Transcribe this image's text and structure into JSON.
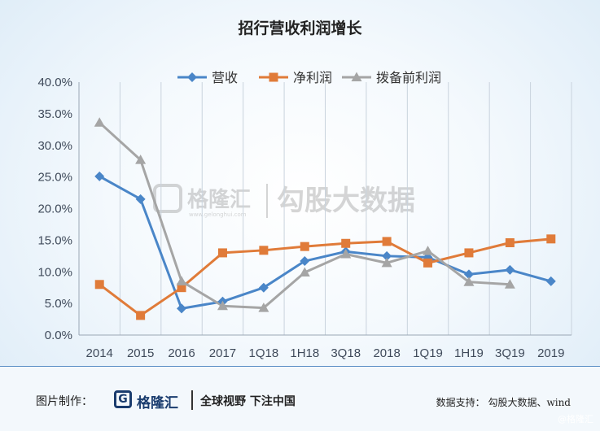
{
  "watermark": {
    "logo_text": "格隆汇",
    "logo_sub": "www.gelonghui.com",
    "brand_text": "勾股大数据"
  },
  "footer": {
    "made_by": "图片制作：",
    "logo_mark": "G",
    "logo_name": "格隆汇",
    "slogan": "全球视野 下注中国",
    "source": "数据支持： 勾股大数据、wind"
  },
  "corner_mark": "@格隆汇",
  "chart_data": {
    "type": "line",
    "title": "招行营收利润增长",
    "categories": [
      "2014",
      "2015",
      "2016",
      "2017",
      "1Q18",
      "1H18",
      "3Q18",
      "2018",
      "1Q19",
      "1H19",
      "3Q19",
      "2019"
    ],
    "series": [
      {
        "name": "营收",
        "color": "#4a86c8",
        "marker": "diamond",
        "values": [
          25.1,
          21.5,
          4.2,
          5.3,
          7.5,
          11.7,
          13.2,
          12.5,
          12.3,
          9.6,
          10.3,
          8.5
        ]
      },
      {
        "name": "净利润",
        "color": "#e07b39",
        "marker": "square",
        "values": [
          8.0,
          3.1,
          7.5,
          13.0,
          13.4,
          14.0,
          14.5,
          14.8,
          11.4,
          13.0,
          14.6,
          15.2
        ]
      },
      {
        "name": "拨备前利润",
        "color": "#a5a5a5",
        "marker": "triangle",
        "values": [
          33.6,
          27.7,
          8.5,
          4.6,
          4.3,
          9.9,
          12.8,
          11.4,
          13.3,
          8.4,
          8.0,
          null
        ]
      }
    ],
    "ylim": [
      0,
      40
    ],
    "yticks": [
      "0.0%",
      "5.0%",
      "10.0%",
      "15.0%",
      "20.0%",
      "25.0%",
      "30.0%",
      "35.0%",
      "40.0%"
    ],
    "xlabel": "",
    "ylabel": "",
    "grid": "vertical",
    "legend_position": "top"
  }
}
